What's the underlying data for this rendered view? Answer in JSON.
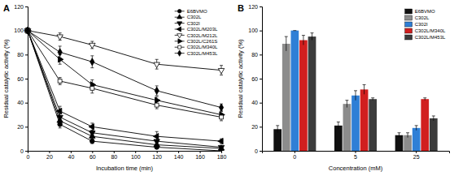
{
  "chart_data": [
    {
      "type": "line",
      "title": "A",
      "x_label": "Incubation time (min)",
      "y_label": "Residual catalytic activity (%)",
      "x": [
        0,
        30,
        60,
        120,
        180
      ],
      "xlim": [
        0,
        180
      ],
      "xticks": [
        0,
        20,
        40,
        60,
        80,
        100,
        120,
        140,
        160,
        180
      ],
      "ylim": [
        0,
        120
      ],
      "yticks": [
        0,
        20,
        40,
        60,
        80,
        100,
        120
      ],
      "grid": false,
      "legend": "top-right",
      "series": [
        {
          "name": "E6BVMO",
          "color": "#000000",
          "marker": "circle",
          "line_style": "solid",
          "values": [
            100,
            22,
            8,
            3,
            0
          ],
          "errors": [
            0,
            3,
            2,
            1,
            1
          ]
        },
        {
          "name": "C302L",
          "color": "#000000",
          "marker": "triangle-up",
          "line_style": "solid",
          "values": [
            100,
            25,
            12,
            5,
            2
          ],
          "errors": [
            0,
            3,
            2,
            2,
            1
          ]
        },
        {
          "name": "C302I",
          "color": "#000000",
          "marker": "triangle-down",
          "line_style": "solid",
          "values": [
            100,
            28,
            15,
            8,
            3
          ],
          "errors": [
            0,
            3,
            2,
            3,
            1
          ]
        },
        {
          "name": "C302L/M203L",
          "color": "#000000",
          "marker": "triangle-left",
          "line_style": "solid",
          "values": [
            100,
            33,
            20,
            12,
            8
          ],
          "errors": [
            0,
            4,
            3,
            4,
            2
          ]
        },
        {
          "name": "C302L/M212L",
          "color": "#000000",
          "marker": "open-triangle-down",
          "line_style": "solid",
          "values": [
            100,
            95,
            88,
            72,
            67
          ],
          "errors": [
            0,
            3,
            3,
            4,
            4
          ]
        },
        {
          "name": "C302L/C261S",
          "color": "#000000",
          "marker": "triangle-right",
          "line_style": "solid",
          "values": [
            100,
            76,
            55,
            42,
            30
          ],
          "errors": [
            0,
            4,
            4,
            3,
            3
          ]
        },
        {
          "name": "C302L/M340L",
          "color": "#000000",
          "marker": "open-square",
          "line_style": "solid",
          "values": [
            100,
            58,
            52,
            38,
            28
          ],
          "errors": [
            0,
            3,
            4,
            3,
            3
          ]
        },
        {
          "name": "C302L/M453L",
          "color": "#000000",
          "marker": "diamond",
          "line_style": "solid",
          "values": [
            100,
            82,
            74,
            50,
            36
          ],
          "errors": [
            0,
            5,
            5,
            4,
            3
          ]
        }
      ]
    },
    {
      "type": "bar",
      "title": "B",
      "x_label": "Concentration (mM)",
      "y_label": "Residual catalytic activity (%)",
      "categories": [
        "0",
        "5",
        "25"
      ],
      "ylim": [
        0,
        120
      ],
      "yticks": [
        0,
        20,
        40,
        60,
        80,
        100,
        120
      ],
      "grid": false,
      "legend": "top-right",
      "series": [
        {
          "name": "E6BVMO",
          "color": "#111111",
          "values": [
            18,
            21,
            13
          ],
          "errors": [
            3,
            3,
            2
          ]
        },
        {
          "name": "C302L",
          "color": "#8c8c8c",
          "values": [
            89,
            39,
            13
          ],
          "errors": [
            6,
            3,
            2
          ]
        },
        {
          "name": "C302I",
          "color": "#2f7fd6",
          "values": [
            100,
            46,
            19
          ],
          "errors": [
            0,
            4,
            2
          ]
        },
        {
          "name": "C302L/M340L",
          "color": "#d11f1f",
          "values": [
            92,
            51,
            43
          ],
          "errors": [
            4,
            4,
            1
          ]
        },
        {
          "name": "C302L/M453L",
          "color": "#3c3c3c",
          "values": [
            95,
            43,
            27
          ],
          "errors": [
            3,
            1,
            2
          ]
        }
      ]
    }
  ]
}
